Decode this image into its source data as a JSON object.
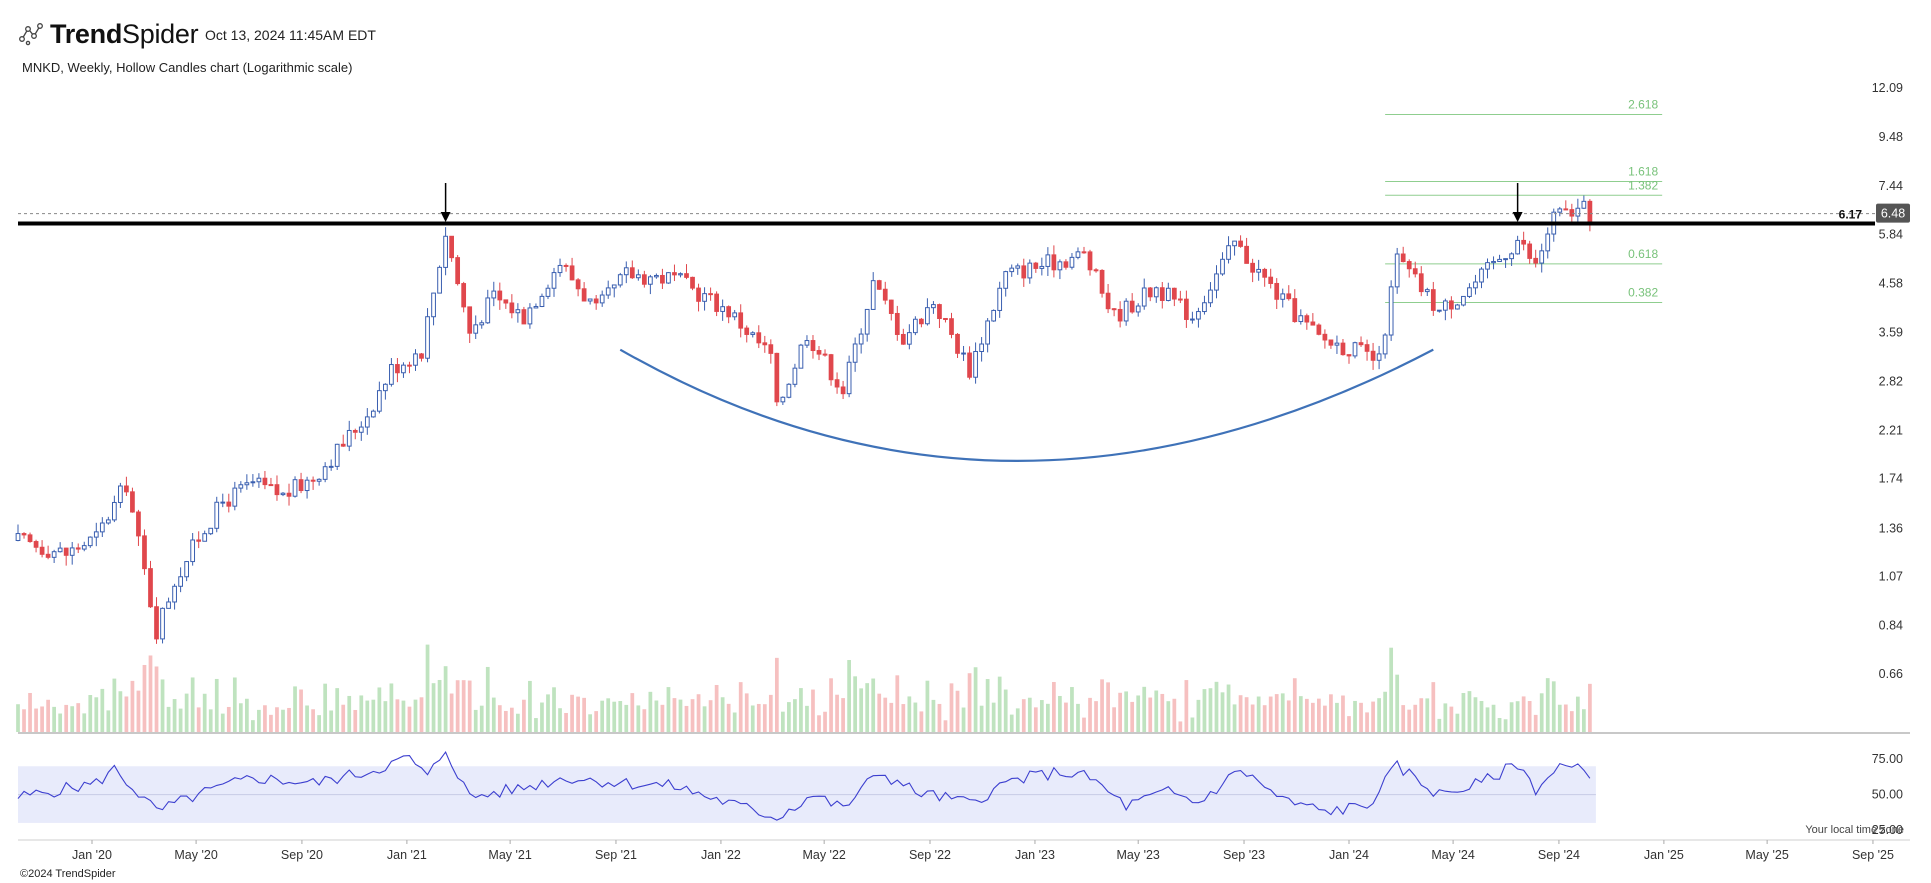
{
  "brand": {
    "name_bold": "Trend",
    "name_light": "Spider",
    "icon": "trendspider-logo-icon"
  },
  "timestamp": "Oct 13, 2024 11:45AM EDT",
  "subtitle": "MNKD, Weekly, Hollow Candles chart (Logarithmic scale)",
  "copyright": "©2024 TrendSpider",
  "timezone_note": "Your local time zone",
  "colors": {
    "up": "#3a5fb0",
    "down": "#e0474c",
    "vol_up": "#bfe3bf",
    "vol_down": "#f6c0c0",
    "rsi_band": "#e8ebfb",
    "rsi_line": "#3c3fcf",
    "curve": "#3f72b8",
    "fib": "#8fce8f",
    "last_badge": "#555555"
  },
  "chart_data": [
    {
      "type": "candlestick",
      "symbol": "MNKD",
      "interval": "Weekly",
      "style": "Hollow Candles",
      "scale": "log",
      "ylim": [
        0.58,
        12.09
      ],
      "y_ticks": [
        "12.09",
        "9.48",
        "7.44",
        "5.84",
        "4.58",
        "3.59",
        "2.82",
        "2.21",
        "1.74",
        "1.36",
        "1.07",
        "0.84",
        "0.66"
      ],
      "x_ticks": [
        "Jan '20",
        "May '20",
        "Sep '20",
        "Jan '21",
        "May '21",
        "Sep '21",
        "Jan '22",
        "May '22",
        "Sep '22",
        "Jan '23",
        "May '23",
        "Sep '23",
        "Jan '24",
        "May '24",
        "Sep '24",
        "Jan '25",
        "May '25",
        "Sep '25"
      ],
      "x_range": [
        "2019-10-07",
        "2025-09-15"
      ],
      "anchors": [
        {
          "date": "2019-10-07",
          "price": 1.28
        },
        {
          "date": "2019-12-02",
          "price": 1.2
        },
        {
          "date": "2020-01-06",
          "price": 1.3
        },
        {
          "date": "2020-02-10",
          "price": 1.7
        },
        {
          "date": "2020-03-16",
          "price": 0.82
        },
        {
          "date": "2020-04-06",
          "price": 1.05
        },
        {
          "date": "2020-05-04",
          "price": 1.3
        },
        {
          "date": "2020-06-01",
          "price": 1.55
        },
        {
          "date": "2020-07-06",
          "price": 1.7
        },
        {
          "date": "2020-08-10",
          "price": 1.6
        },
        {
          "date": "2020-09-14",
          "price": 1.75
        },
        {
          "date": "2020-10-12",
          "price": 2.0
        },
        {
          "date": "2020-11-16",
          "price": 2.4
        },
        {
          "date": "2020-12-14",
          "price": 3.0
        },
        {
          "date": "2021-01-18",
          "price": 3.3
        },
        {
          "date": "2021-02-15",
          "price": 5.9
        },
        {
          "date": "2021-03-15",
          "price": 3.6
        },
        {
          "date": "2021-04-12",
          "price": 4.3
        },
        {
          "date": "2021-05-17",
          "price": 3.9
        },
        {
          "date": "2021-06-28",
          "price": 5.1
        },
        {
          "date": "2021-08-09",
          "price": 4.0
        },
        {
          "date": "2021-09-13",
          "price": 4.8
        },
        {
          "date": "2021-11-08",
          "price": 4.7
        },
        {
          "date": "2022-01-10",
          "price": 4.0
        },
        {
          "date": "2022-02-28",
          "price": 3.2
        },
        {
          "date": "2022-03-07",
          "price": 2.45
        },
        {
          "date": "2022-04-11",
          "price": 3.6
        },
        {
          "date": "2022-05-23",
          "price": 2.7
        },
        {
          "date": "2022-06-27",
          "price": 4.6
        },
        {
          "date": "2022-08-01",
          "price": 3.5
        },
        {
          "date": "2022-09-05",
          "price": 4.2
        },
        {
          "date": "2022-10-17",
          "price": 3.0
        },
        {
          "date": "2022-11-28",
          "price": 4.8
        },
        {
          "date": "2023-01-23",
          "price": 5.1
        },
        {
          "date": "2023-02-27",
          "price": 5.3
        },
        {
          "date": "2023-04-03",
          "price": 3.9
        },
        {
          "date": "2023-05-22",
          "price": 4.5
        },
        {
          "date": "2023-07-03",
          "price": 3.9
        },
        {
          "date": "2023-08-21",
          "price": 5.6
        },
        {
          "date": "2023-10-16",
          "price": 4.2
        },
        {
          "date": "2023-11-27",
          "price": 3.5
        },
        {
          "date": "2024-01-08",
          "price": 3.3
        },
        {
          "date": "2024-02-05",
          "price": 3.1
        },
        {
          "date": "2024-02-26",
          "price": 5.2
        },
        {
          "date": "2024-04-15",
          "price": 4.0
        },
        {
          "date": "2024-05-27",
          "price": 4.6
        },
        {
          "date": "2024-07-15",
          "price": 5.7
        },
        {
          "date": "2024-08-05",
          "price": 5.0
        },
        {
          "date": "2024-08-26",
          "price": 6.4
        },
        {
          "date": "2024-09-30",
          "price": 6.6
        },
        {
          "date": "2024-10-07",
          "price": 6.48
        }
      ],
      "resistance_level": 6.17,
      "last_price": "6.48",
      "resistance_label": "6.17",
      "arrows": [
        {
          "date": "2021-02-15",
          "price": 6.9
        },
        {
          "date": "2024-07-15",
          "price": 6.9
        }
      ],
      "cup_curve": {
        "start": {
          "date": "2021-09-06",
          "price": 3.3
        },
        "bottom": {
          "date": "2022-12-12",
          "price": 1.9
        },
        "end": {
          "date": "2024-04-08",
          "price": 3.3
        }
      },
      "fib_extension": {
        "from_date": "2024-02-12",
        "to_date": "2024-12-30",
        "levels": [
          {
            "label": "2.618",
            "price": 10.6
          },
          {
            "label": "1.618",
            "price": 7.6
          },
          {
            "label": "1.382",
            "price": 7.1
          },
          {
            "label": "0.618",
            "price": 5.05
          },
          {
            "label": "0.382",
            "price": 4.17
          }
        ]
      },
      "volume": {
        "type": "bar",
        "note": "weekly volume histogram, colored by candle direction"
      }
    },
    {
      "type": "line",
      "name": "RSI",
      "ylim": [
        25,
        85
      ],
      "y_ticks": [
        "75.00",
        "50.00",
        "25.00"
      ],
      "band": [
        30,
        70
      ],
      "anchors": [
        {
          "date": "2019-10-07",
          "value": 48
        },
        {
          "date": "2020-01-06",
          "value": 58
        },
        {
          "date": "2020-01-27",
          "value": 68
        },
        {
          "date": "2020-03-16",
          "value": 38
        },
        {
          "date": "2020-05-04",
          "value": 50
        },
        {
          "date": "2020-07-06",
          "value": 62
        },
        {
          "date": "2020-09-14",
          "value": 58
        },
        {
          "date": "2020-11-16",
          "value": 66
        },
        {
          "date": "2021-01-04",
          "value": 76
        },
        {
          "date": "2021-01-25",
          "value": 62
        },
        {
          "date": "2021-02-15",
          "value": 82
        },
        {
          "date": "2021-03-15",
          "value": 48
        },
        {
          "date": "2021-05-17",
          "value": 55
        },
        {
          "date": "2021-07-05",
          "value": 62
        },
        {
          "date": "2021-09-13",
          "value": 58
        },
        {
          "date": "2021-11-08",
          "value": 56
        },
        {
          "date": "2022-01-10",
          "value": 44
        },
        {
          "date": "2022-03-07",
          "value": 34
        },
        {
          "date": "2022-04-18",
          "value": 50
        },
        {
          "date": "2022-05-23",
          "value": 40
        },
        {
          "date": "2022-07-04",
          "value": 66
        },
        {
          "date": "2022-08-15",
          "value": 52
        },
        {
          "date": "2022-10-17",
          "value": 44
        },
        {
          "date": "2022-12-05",
          "value": 60
        },
        {
          "date": "2023-01-30",
          "value": 66
        },
        {
          "date": "2023-03-06",
          "value": 62
        },
        {
          "date": "2023-04-17",
          "value": 42
        },
        {
          "date": "2023-06-05",
          "value": 52
        },
        {
          "date": "2023-07-10",
          "value": 44
        },
        {
          "date": "2023-08-28",
          "value": 68
        },
        {
          "date": "2023-10-16",
          "value": 46
        },
        {
          "date": "2023-12-04",
          "value": 38
        },
        {
          "date": "2024-01-22",
          "value": 42
        },
        {
          "date": "2024-02-26",
          "value": 70
        },
        {
          "date": "2024-04-15",
          "value": 50
        },
        {
          "date": "2024-06-03",
          "value": 58
        },
        {
          "date": "2024-07-15",
          "value": 72
        },
        {
          "date": "2024-08-05",
          "value": 54
        },
        {
          "date": "2024-09-02",
          "value": 70
        },
        {
          "date": "2024-10-07",
          "value": 66
        }
      ]
    }
  ]
}
